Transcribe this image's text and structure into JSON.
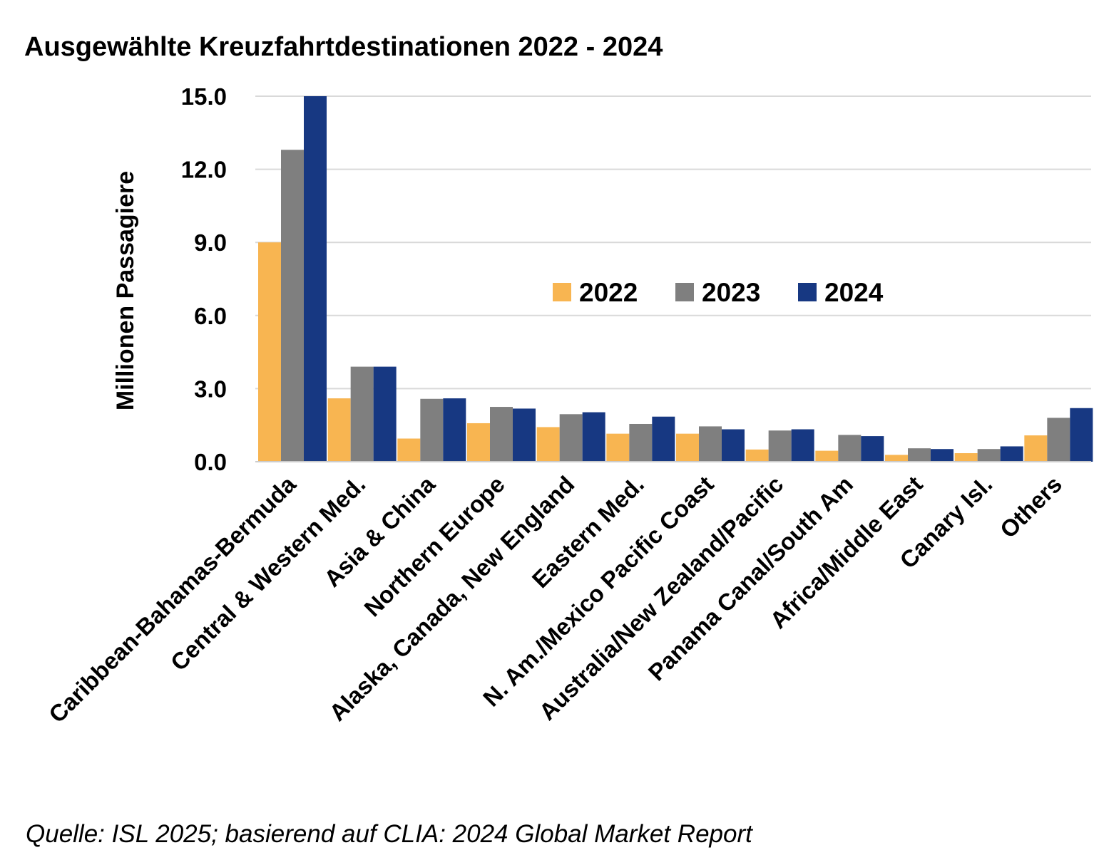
{
  "chart_data": {
    "type": "bar",
    "title": "Ausgewählte Kreuzfahrtdestinationen 2022 - 2024",
    "ylabel": "Millionen Passagiere",
    "xlabel": "",
    "ylim": [
      0,
      15
    ],
    "yticks": [
      "0.0",
      "3.0",
      "6.0",
      "9.0",
      "12.0",
      "15.0"
    ],
    "grid": true,
    "legend_position": "center",
    "categories": [
      "Caribbean-Bahamas-Bermuda",
      "Central & Western Med.",
      "Asia & China",
      "Northern Europe",
      "Alaska, Canada, New England",
      "Eastern Med.",
      "N. Am./Mexico Pacific Coast",
      "Australia/New Zealand/Pacific",
      "Panama Canal/South Am",
      "Africa/Middle East",
      "Canary Isl.",
      "Others"
    ],
    "series": [
      {
        "name": "2022",
        "color": "#f8b551",
        "values": [
          9.0,
          2.6,
          0.95,
          1.58,
          1.42,
          1.15,
          1.15,
          0.5,
          0.45,
          0.28,
          0.35,
          1.08
        ]
      },
      {
        "name": "2023",
        "color": "#7f7f7f",
        "values": [
          12.8,
          3.9,
          2.58,
          2.25,
          1.95,
          1.55,
          1.45,
          1.28,
          1.1,
          0.55,
          0.52,
          1.8
        ]
      },
      {
        "name": "2024",
        "color": "#173882",
        "values": [
          15.0,
          3.9,
          2.6,
          2.18,
          2.03,
          1.85,
          1.33,
          1.33,
          1.05,
          0.52,
          0.63,
          2.2
        ]
      }
    ]
  },
  "source": "Quelle: ISL 2025; basierend auf CLIA: 2024 Global Market Report"
}
